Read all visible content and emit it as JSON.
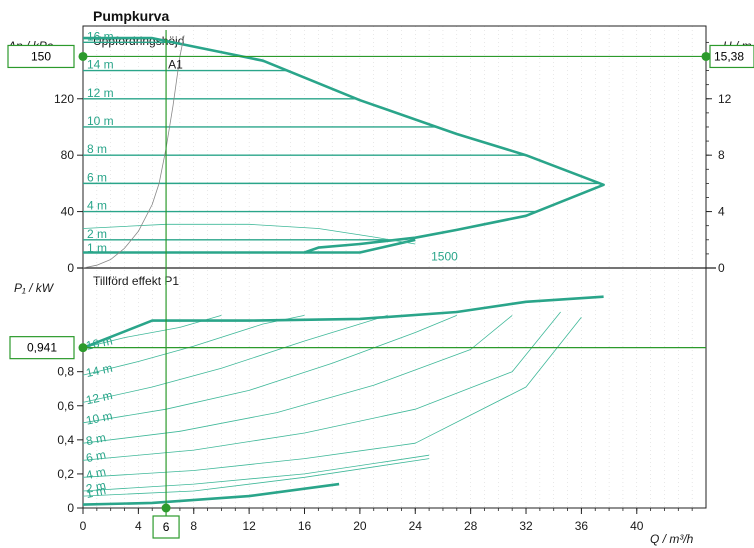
{
  "title": "Pumpkurva",
  "colors": {
    "curve": "#2aa58a",
    "curve_thin": "#3fb899",
    "operating_line": "#2c9a2c",
    "axis": "#222222",
    "grid": "#d0d0d0"
  },
  "chart_data": [
    {
      "type": "line",
      "panel": "Uppfordringshöjd",
      "panel_label": "Uppfordringshöjd",
      "ylabel": "Δp / kPa",
      "ylabel_right": "H / m",
      "xlim": [
        0,
        45
      ],
      "ylim": [
        0,
        165
      ],
      "y_ticks": [
        0,
        40,
        80,
        120
      ],
      "y_ticks_right": [
        0,
        4,
        8,
        12
      ],
      "right_scale_factor": 10,
      "grid": true,
      "head_curve_labels": [
        "16 m",
        "14 m",
        "12 m",
        "10 m",
        "8 m",
        "6 m",
        "4 m",
        "2 m",
        "1 m"
      ],
      "head_levels_m": [
        16,
        14,
        12,
        10,
        8,
        6,
        4,
        2,
        1
      ],
      "envelope": {
        "name": "max",
        "points": [
          [
            0,
            163
          ],
          [
            5,
            163
          ],
          [
            13,
            147
          ],
          [
            20,
            119
          ],
          [
            27,
            95
          ],
          [
            32,
            80
          ],
          [
            37.6,
            59
          ],
          [
            32,
            37
          ],
          [
            27,
            27
          ],
          [
            24,
            21.5
          ],
          [
            20,
            17
          ],
          [
            17,
            14.5
          ],
          [
            16,
            11
          ]
        ]
      },
      "min_curve": {
        "points": [
          [
            0,
            11
          ],
          [
            20,
            11
          ],
          [
            24,
            20
          ]
        ]
      },
      "system_curve": {
        "label": "A1",
        "points": [
          [
            0,
            0
          ],
          [
            1,
            2
          ],
          [
            2,
            6
          ],
          [
            3,
            14
          ],
          [
            4,
            26
          ],
          [
            5,
            45
          ],
          [
            5.5,
            60
          ],
          [
            6,
            85
          ],
          [
            6.5,
            115
          ],
          [
            7,
            150
          ],
          [
            7.3,
            165
          ]
        ]
      },
      "constant_speed_curve": {
        "label": "1500",
        "points": [
          [
            0,
            28
          ],
          [
            6,
            31
          ],
          [
            12,
            31
          ],
          [
            17,
            28
          ],
          [
            21,
            22
          ],
          [
            24,
            17
          ]
        ]
      },
      "annotations": [
        {
          "text": "A1",
          "x": 6,
          "y": 150
        },
        {
          "text": "1500",
          "x": 25,
          "y": 8
        }
      ],
      "operating_point": {
        "x": 6,
        "y": 150,
        "y_label": "150",
        "y_right_label": "15,38",
        "x_label": "6"
      }
    },
    {
      "type": "line",
      "panel": "Tillförd effekt P1",
      "panel_label": "Tillförd effekt P1",
      "ylabel": "P₁ / kW",
      "xlabel": "Q / m³/h",
      "xlim": [
        0,
        45
      ],
      "ylim": [
        0,
        1.25
      ],
      "x_ticks": [
        0,
        4,
        8,
        12,
        16,
        20,
        24,
        28,
        32,
        36,
        40
      ],
      "y_tick_labels": [
        "0",
        "0,2",
        "0,4",
        "0,6",
        "0,8"
      ],
      "y_ticks": [
        0,
        0.2,
        0.4,
        0.6,
        0.8
      ],
      "grid": true,
      "power_curve_labels": [
        "16 m",
        "14 m",
        "12 m",
        "10 m",
        "8 m",
        "6 m",
        "4 m",
        "2 m",
        "1 m"
      ],
      "power_curves": [
        {
          "name": "16 m",
          "points": [
            [
              0,
              0.94
            ],
            [
              3,
              1.0
            ],
            [
              7,
              1.06
            ],
            [
              10,
              1.13
            ]
          ]
        },
        {
          "name": "14 m",
          "points": [
            [
              0,
              0.78
            ],
            [
              4,
              0.86
            ],
            [
              8,
              0.95
            ],
            [
              13,
              1.08
            ],
            [
              16,
              1.13
            ]
          ]
        },
        {
          "name": "12 m",
          "points": [
            [
              0,
              0.62
            ],
            [
              5,
              0.71
            ],
            [
              10,
              0.82
            ],
            [
              16,
              0.98
            ],
            [
              20,
              1.08
            ],
            [
              22,
              1.13
            ]
          ]
        },
        {
          "name": "10 m",
          "points": [
            [
              0,
              0.5
            ],
            [
              6,
              0.58
            ],
            [
              12,
              0.69
            ],
            [
              18,
              0.85
            ],
            [
              24,
              1.03
            ],
            [
              27,
              1.13
            ]
          ]
        },
        {
          "name": "8 m",
          "points": [
            [
              0,
              0.38
            ],
            [
              7,
              0.45
            ],
            [
              14,
              0.56
            ],
            [
              21,
              0.72
            ],
            [
              28,
              0.93
            ],
            [
              31,
              1.13
            ]
          ]
        },
        {
          "name": "6 m",
          "points": [
            [
              0,
              0.28
            ],
            [
              8,
              0.34
            ],
            [
              16,
              0.44
            ],
            [
              24,
              0.58
            ],
            [
              31,
              0.8
            ],
            [
              34.5,
              1.15
            ]
          ]
        },
        {
          "name": "4 m",
          "points": [
            [
              0,
              0.18
            ],
            [
              8,
              0.22
            ],
            [
              16,
              0.29
            ],
            [
              24,
              0.38
            ],
            [
              32,
              0.71
            ],
            [
              36,
              1.12
            ]
          ]
        },
        {
          "name": "2 m",
          "points": [
            [
              0,
              0.1
            ],
            [
              8,
              0.14
            ],
            [
              16,
              0.2
            ],
            [
              25,
              0.31
            ]
          ]
        },
        {
          "name": "1 m",
          "points": [
            [
              0,
              0.07
            ],
            [
              8,
              0.1
            ],
            [
              16,
              0.18
            ],
            [
              25,
              0.29
            ]
          ]
        }
      ],
      "max_power_curve": {
        "points": [
          [
            0,
            0.94
          ],
          [
            5,
            1.1
          ],
          [
            12,
            1.1
          ],
          [
            20,
            1.11
          ],
          [
            27,
            1.15
          ],
          [
            32,
            1.21
          ],
          [
            37.6,
            1.24
          ]
        ]
      },
      "min_power_curve": {
        "points": [
          [
            0,
            0.02
          ],
          [
            5,
            0.03
          ],
          [
            12,
            0.07
          ],
          [
            18.5,
            0.14
          ]
        ]
      },
      "operating_point": {
        "x": 6,
        "y": 0.941,
        "y_label": "0,941",
        "x_label": "6"
      }
    }
  ]
}
